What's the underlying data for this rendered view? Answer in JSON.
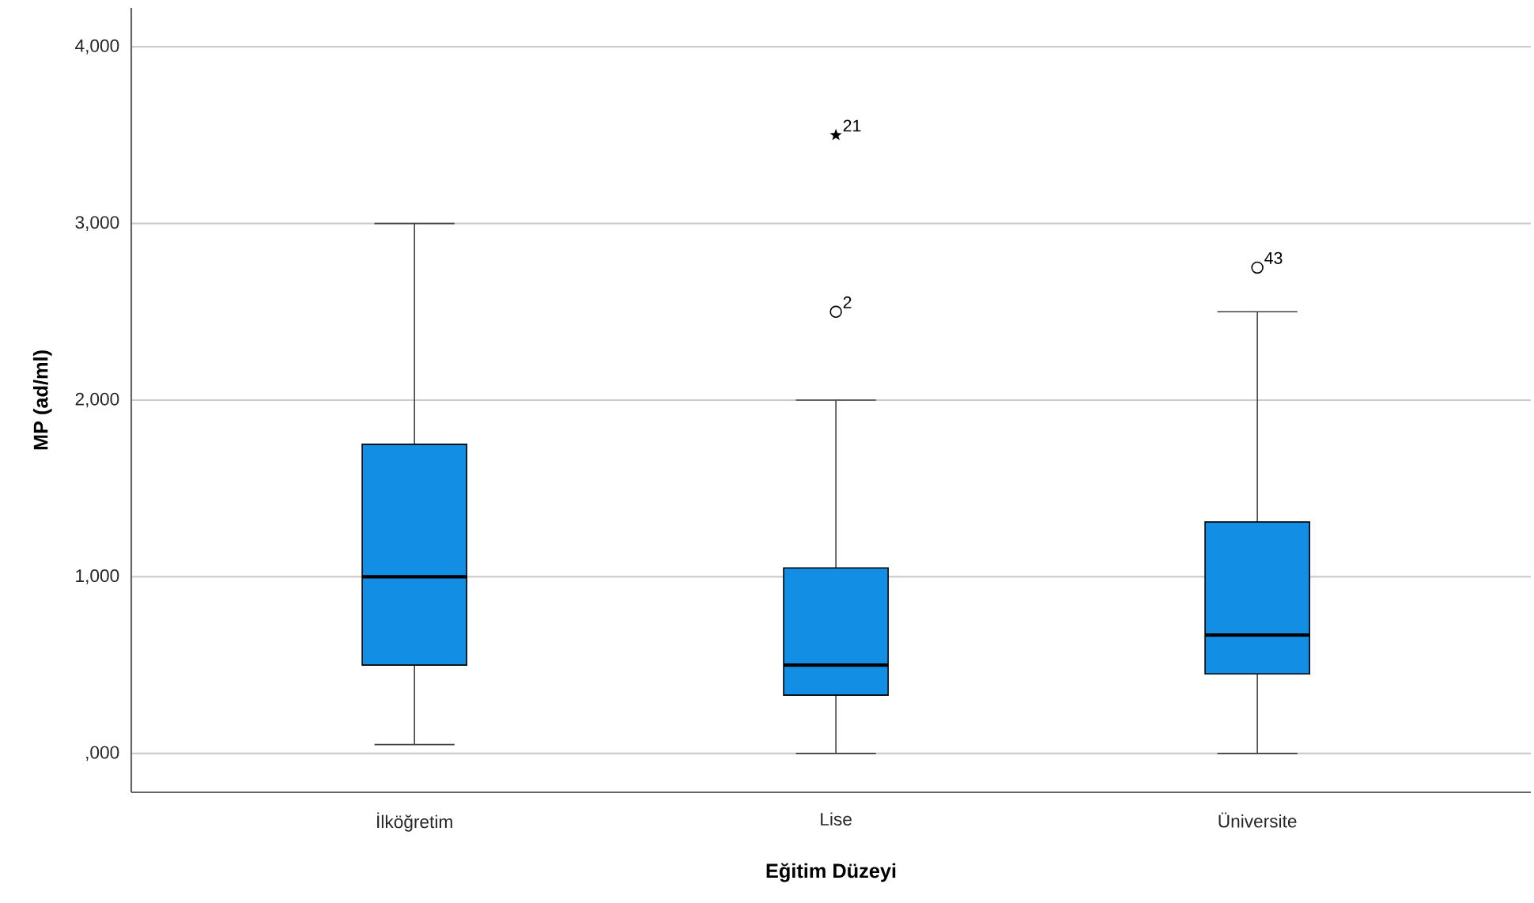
{
  "chart_data": {
    "type": "box",
    "xlabel": "Eğitim Düzeyi",
    "ylabel": "MP (ad/ml)",
    "categories": [
      "İlköğretim",
      "Lise",
      "Üniversite"
    ],
    "color": "#128fe5",
    "boxes": [
      {
        "low": 50,
        "q1": 500,
        "median": 1000,
        "q3": 1750,
        "high": 3000
      },
      {
        "low": 0,
        "q1": 330,
        "median": 500,
        "q3": 1050,
        "high": 2000
      },
      {
        "low": 0,
        "q1": 450,
        "median": 670,
        "q3": 1310,
        "high": 2500
      }
    ],
    "series": [
      {
        "type": "scatter",
        "x": [
          "Lise",
          "Üniversite"
        ],
        "values": [
          2500,
          2750
        ],
        "marker": "circle",
        "color": "#000000"
      },
      {
        "type": "scatter",
        "x": [
          "Lise"
        ],
        "values": [
          3500
        ],
        "marker": "star",
        "color": "#000000"
      }
    ],
    "ylim": [
      -220,
      4220
    ],
    "yticks": [
      {
        "value": 0,
        "label": ",000"
      },
      {
        "value": 1000,
        "label": "1,000"
      },
      {
        "value": 2000,
        "label": "2,000"
      },
      {
        "value": 3000,
        "label": "3,000"
      },
      {
        "value": 4000,
        "label": "4,000"
      }
    ],
    "grid": "y",
    "annotations": [
      {
        "text": "21",
        "x": "Lise",
        "y": 3500
      },
      {
        "text": "2",
        "x": "Lise",
        "y": 2500
      },
      {
        "text": "43",
        "x": "Üniversite",
        "y": 2750
      }
    ]
  }
}
